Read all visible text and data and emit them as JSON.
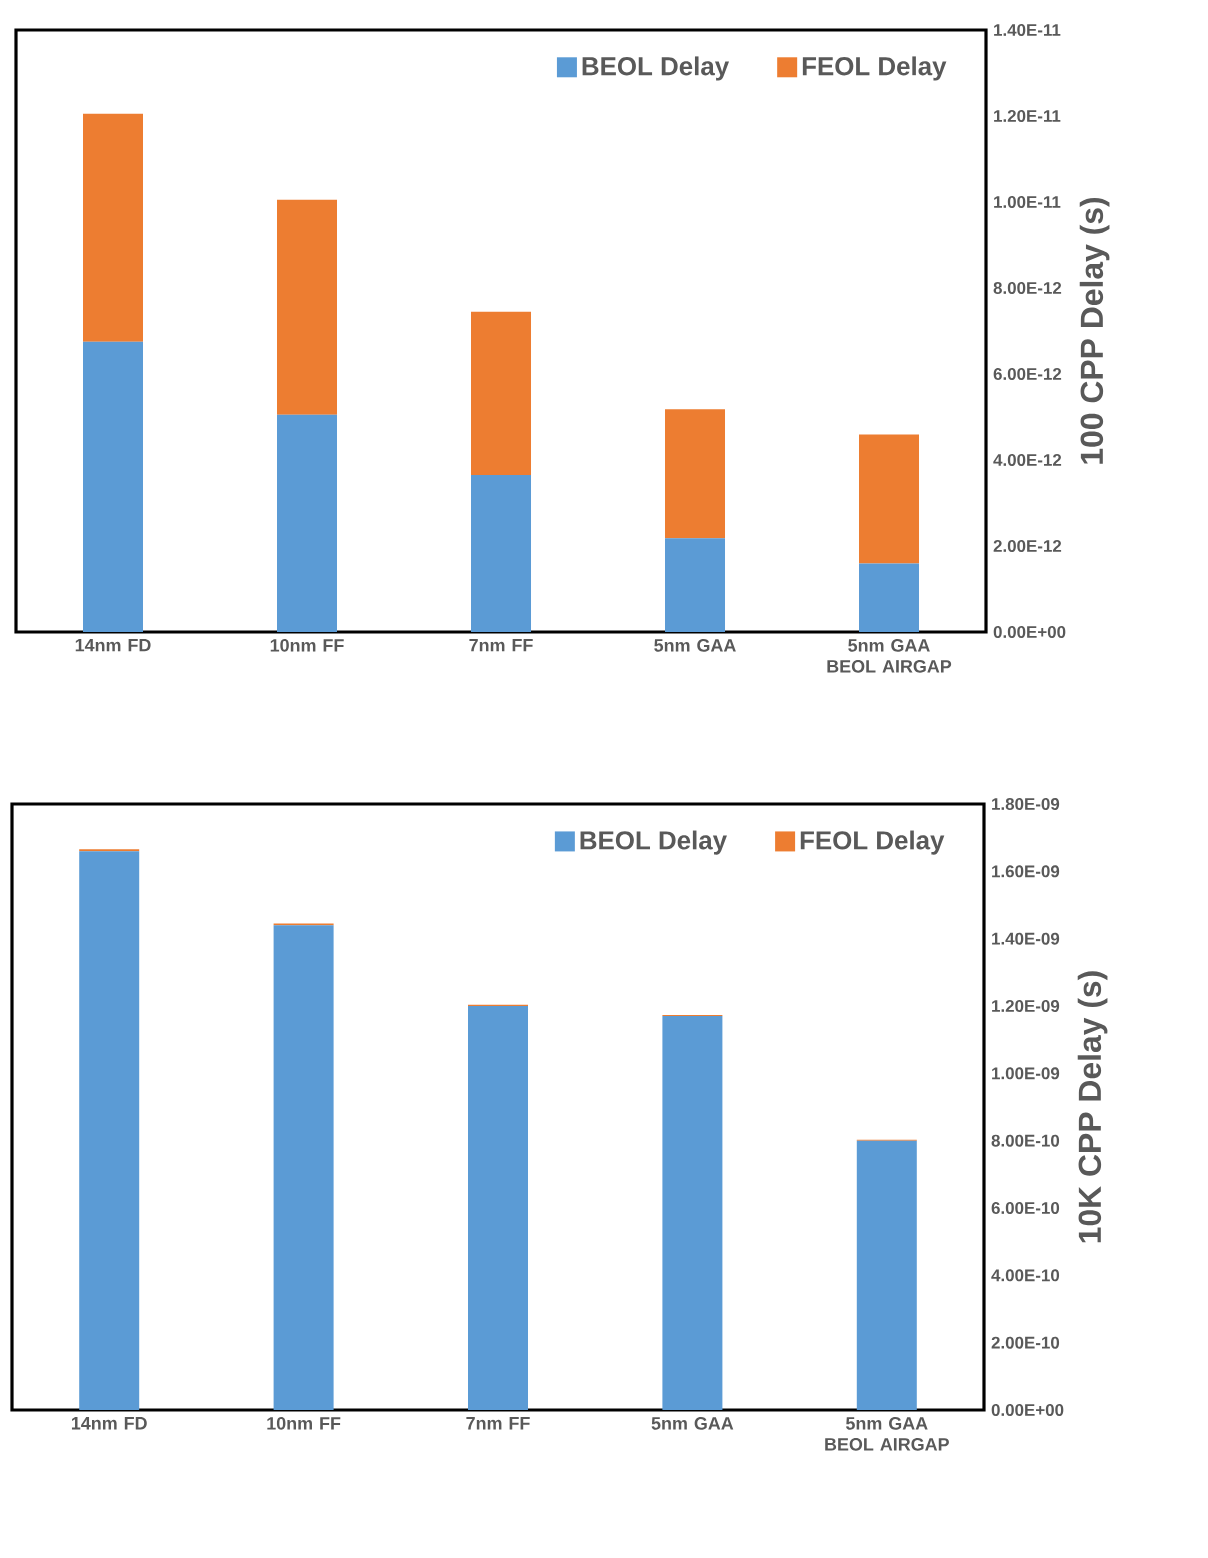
{
  "chart_data": [
    {
      "type": "bar",
      "stacked": true,
      "ylabel": "100 CPP Delay (s)",
      "categories": [
        "14nm FD",
        "10nm FF",
        "7nm FF",
        "5nm GAA",
        "5nm GAA BEOL AIRGAP"
      ],
      "series": [
        {
          "name": "BEOL Delay",
          "color": "#5b9bd5",
          "values": [
            6.75e-12,
            5.05e-12,
            3.65e-12,
            2.18e-12,
            1.59e-12
          ]
        },
        {
          "name": "FEOL Delay",
          "color": "#ed7d31",
          "values": [
            5.3e-12,
            5e-12,
            3.8e-12,
            3e-12,
            3e-12
          ]
        }
      ],
      "ylim": [
        0,
        1.4e-11
      ],
      "yticks": [
        {
          "value": 0,
          "label": "0.00E+00"
        },
        {
          "value": 2e-12,
          "label": "2.00E-12"
        },
        {
          "value": 4e-12,
          "label": "4.00E-12"
        },
        {
          "value": 6e-12,
          "label": "6.00E-12"
        },
        {
          "value": 8e-12,
          "label": "8.00E-12"
        },
        {
          "value": 1e-11,
          "label": "1.00E-11"
        },
        {
          "value": 1.2e-11,
          "label": "1.20E-11"
        },
        {
          "value": 1.4e-11,
          "label": "1.40E-11"
        }
      ],
      "legend": "top right"
    },
    {
      "type": "bar",
      "stacked": true,
      "ylabel": "10K CPP Delay (s)",
      "categories": [
        "14nm FD",
        "10nm FF",
        "7nm FF",
        "5nm GAA",
        "5nm GAA BEOL AIRGAP"
      ],
      "series": [
        {
          "name": "BEOL Delay",
          "color": "#5b9bd5",
          "values": [
            1.66e-09,
            1.44e-09,
            1.2e-09,
            1.17e-09,
            8e-10
          ]
        },
        {
          "name": "FEOL Delay",
          "color": "#ed7d31",
          "values": [
            5.3e-12,
            5e-12,
            3.8e-12,
            3e-12,
            3e-12
          ]
        }
      ],
      "ylim": [
        0,
        1.8e-09
      ],
      "yticks": [
        {
          "value": 0,
          "label": "0.00E+00"
        },
        {
          "value": 2e-10,
          "label": "2.00E-10"
        },
        {
          "value": 4e-10,
          "label": "4.00E-10"
        },
        {
          "value": 6e-10,
          "label": "6.00E-10"
        },
        {
          "value": 8e-10,
          "label": "8.00E-10"
        },
        {
          "value": 1e-09,
          "label": "1.00E-09"
        },
        {
          "value": 1.2e-09,
          "label": "1.20E-09"
        },
        {
          "value": 1.4e-09,
          "label": "1.40E-09"
        },
        {
          "value": 1.6e-09,
          "label": "1.60E-09"
        },
        {
          "value": 1.8e-09,
          "label": "1.80E-09"
        }
      ],
      "legend": "top right"
    }
  ]
}
